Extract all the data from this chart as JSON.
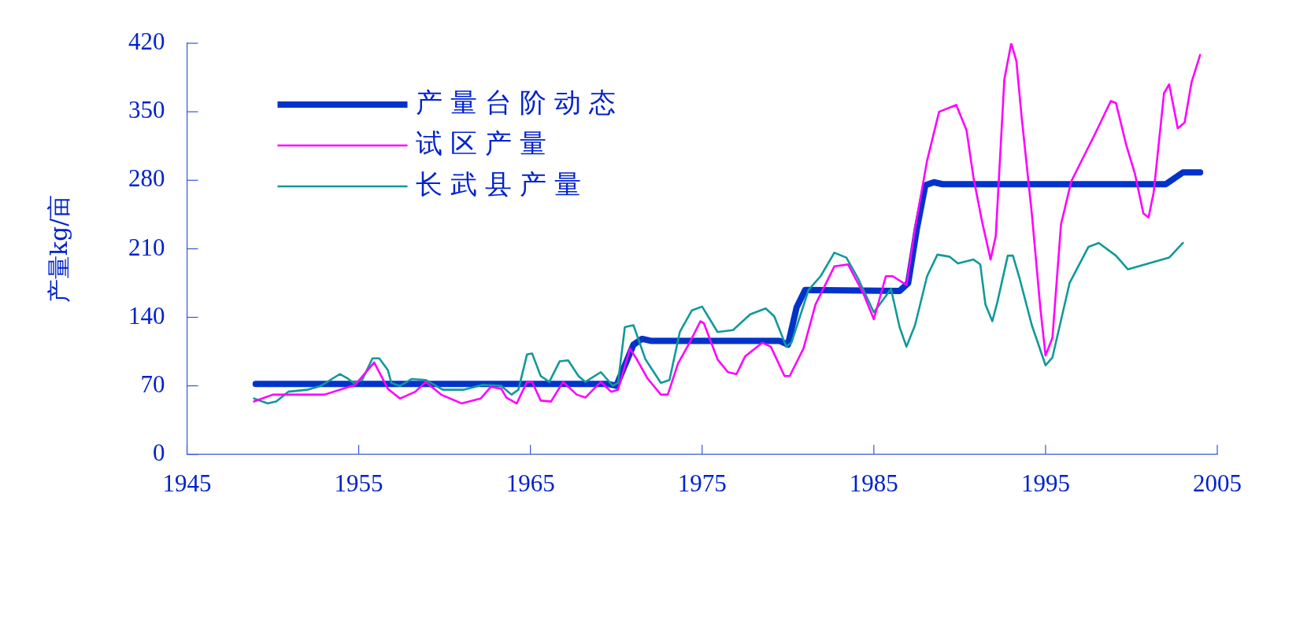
{
  "chart_data": {
    "type": "line",
    "ylabel": "产量kg/亩",
    "xlim": [
      1945,
      2005
    ],
    "xticks": [
      1945,
      1955,
      1965,
      1975,
      1985,
      1995,
      2005
    ],
    "ylim": [
      0,
      420
    ],
    "yticks": [
      0,
      70,
      140,
      210,
      280,
      350,
      420
    ],
    "grid": false,
    "legend": "top left",
    "marker": "none",
    "line_style": "solid",
    "series": [
      {
        "name": "产量台阶动态",
        "color": "#0033cc",
        "x": [
          1949,
          1969.5,
          1970,
          1971,
          1971.5,
          1972,
          1979.5,
          1980,
          1980.5,
          1981,
          1986.5,
          1987,
          1987.5,
          1988,
          1988.5,
          1989,
          2002,
          2002.5,
          2003,
          2004
        ],
        "values": [
          72,
          72,
          70,
          112,
          118,
          116,
          116,
          112,
          150,
          168,
          167,
          175,
          230,
          275,
          278,
          276,
          276,
          282,
          288,
          288
        ]
      },
      {
        "name": "试区产量",
        "color": "#ff00ff",
        "x": [
          1948.9,
          1950,
          1953,
          1954.8,
          1955.9,
          1956.7,
          1957.4,
          1958.3,
          1958.9,
          1959.8,
          1961,
          1962.1,
          1962.7,
          1963.3,
          1963.6,
          1964.2,
          1964.8,
          1965.1,
          1965.6,
          1966.2,
          1966.9,
          1967.7,
          1968.2,
          1969.1,
          1969.7,
          1970.1,
          1970.8,
          1971.2,
          1971.8,
          1972.6,
          1973,
          1973.6,
          1974.3,
          1974.9,
          1975.1,
          1975.9,
          1976.5,
          1977,
          1977.5,
          1978.5,
          1979,
          1979.8,
          1980.1,
          1980.9,
          1981.6,
          1982.7,
          1983.5,
          1984.4,
          1985,
          1985.7,
          1986.1,
          1986.9,
          1987.4,
          1988.1,
          1988.8,
          1989.8,
          1990.4,
          1990.8,
          1991.3,
          1991.8,
          1992.1,
          1992.6,
          1993,
          1993.3,
          1993.6,
          1994.2,
          1994.7,
          1995,
          1995.4,
          1995.9,
          1996.5,
          1997.9,
          1998.8,
          1999.1,
          1999.7,
          2000.2,
          2000.7,
          2001,
          2001.3,
          2001.9,
          2002.2,
          2002.7,
          2003.1,
          2003.5,
          2004
        ],
        "values": [
          54,
          61,
          61,
          71,
          94,
          67,
          57,
          64,
          74,
          61,
          52,
          57,
          69,
          67,
          58,
          52,
          74,
          74,
          55,
          54,
          74,
          61,
          58,
          74,
          64,
          66,
          108,
          97,
          78,
          61,
          61,
          93,
          115,
          136,
          134,
          97,
          84,
          82,
          100,
          114,
          110,
          80,
          80,
          108,
          153,
          192,
          194,
          164,
          138,
          182,
          182,
          173,
          231,
          300,
          350,
          357,
          331,
          283,
          238,
          199,
          223,
          383,
          420,
          402,
          346,
          246,
          149,
          101,
          119,
          235,
          279,
          328,
          361,
          359,
          316,
          287,
          246,
          242,
          268,
          369,
          378,
          333,
          339,
          380,
          408
        ]
      },
      {
        "name": "长武县产量",
        "color": "#119999",
        "x": [
          1948.9,
          1949.7,
          1950.2,
          1950.9,
          1952,
          1952.8,
          1953.9,
          1954.4,
          1954.7,
          1955.2,
          1955.8,
          1956.2,
          1956.7,
          1956.9,
          1957.4,
          1958.1,
          1958.9,
          1959.9,
          1961.1,
          1962.2,
          1963.3,
          1963.9,
          1964.3,
          1964.8,
          1965.1,
          1965.6,
          1966.1,
          1966.7,
          1967.2,
          1967.8,
          1968.2,
          1969.1,
          1969.8,
          1970.1,
          1970.5,
          1971,
          1971.7,
          1972.6,
          1973.1,
          1973.7,
          1974.4,
          1975,
          1975.9,
          1976.8,
          1977.8,
          1978.7,
          1979.2,
          1979.9,
          1980.2,
          1981.2,
          1981.9,
          1982.7,
          1983.4,
          1984.1,
          1985,
          1986,
          1986.5,
          1986.9,
          1987.4,
          1988.1,
          1988.7,
          1989.4,
          1989.9,
          1990.8,
          1991.2,
          1991.5,
          1991.9,
          1992.2,
          1992.8,
          1993.1,
          1993.5,
          1994.2,
          1995,
          1995.4,
          1996.4,
          1997.5,
          1998.1,
          1999.1,
          1999.8,
          2001,
          2002.2,
          2003
        ],
        "values": [
          57,
          52,
          54,
          64,
          66,
          70,
          82,
          77,
          73,
          76,
          98,
          98,
          86,
          73,
          70,
          77,
          76,
          66,
          66,
          71,
          70,
          61,
          66,
          102,
          103,
          80,
          74,
          95,
          96,
          80,
          74,
          84,
          70,
          73,
          130,
          132,
          97,
          73,
          76,
          125,
          147,
          151,
          125,
          127,
          143,
          149,
          141,
          110,
          114,
          168,
          182,
          206,
          201,
          179,
          145,
          169,
          130,
          110,
          132,
          182,
          204,
          202,
          195,
          199,
          194,
          153,
          136,
          156,
          203,
          203,
          179,
          132,
          91,
          99,
          175,
          212,
          216,
          203,
          189,
          195,
          201,
          216
        ]
      }
    ]
  }
}
